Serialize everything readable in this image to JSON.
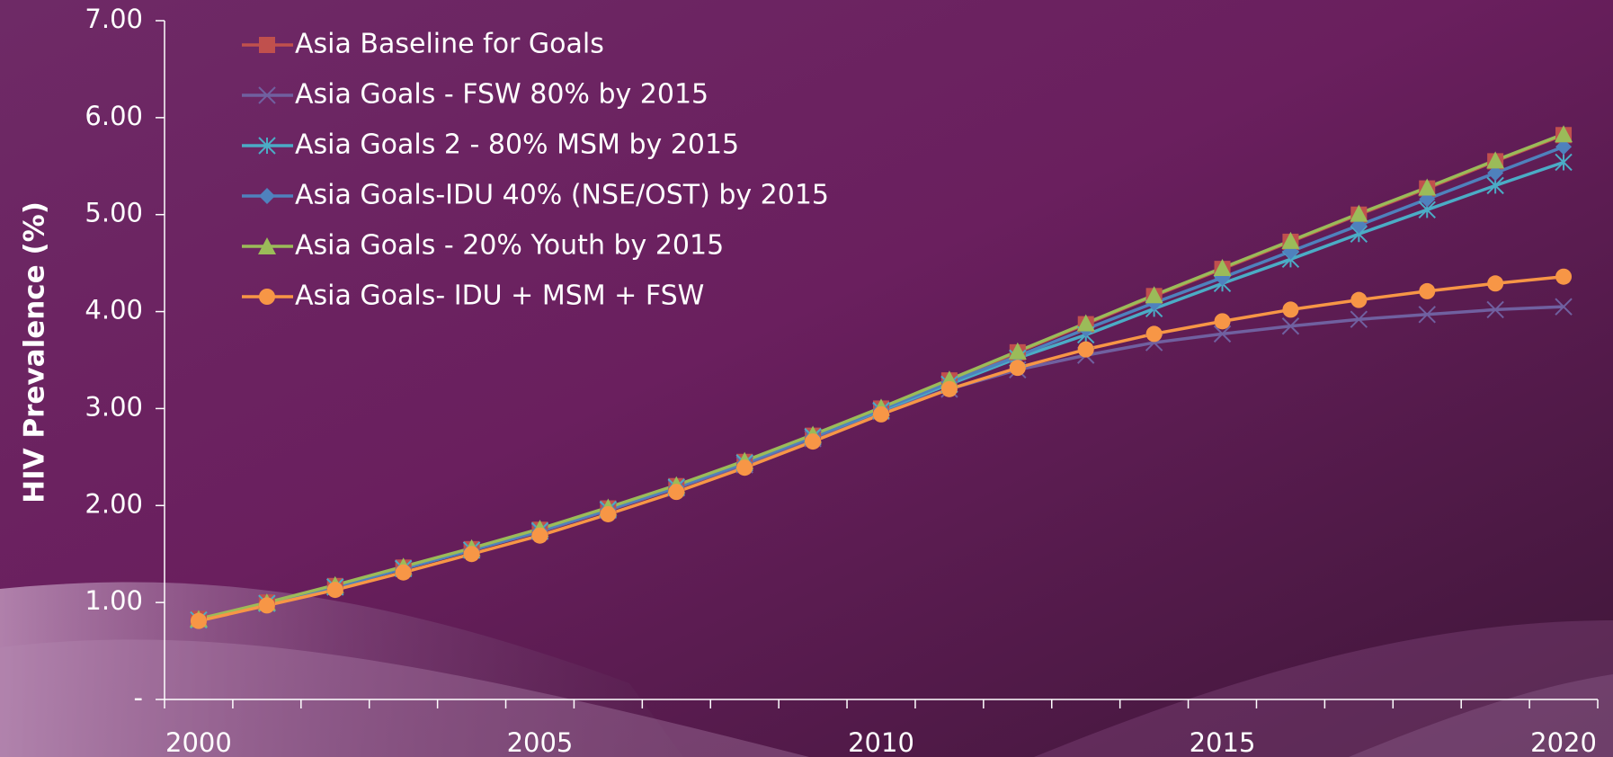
{
  "chart_data": {
    "type": "line",
    "y_label": "HIV Prevalence (%)",
    "categories": [
      "2000",
      null,
      null,
      null,
      null,
      "2005",
      null,
      null,
      null,
      null,
      "2010",
      null,
      null,
      null,
      null,
      "2015",
      null,
      null,
      null,
      null,
      "2020"
    ],
    "ylim": [
      0,
      7
    ],
    "yticks": [
      {
        "value": 0,
        "label": "-"
      },
      {
        "value": 1,
        "label": "1.00"
      },
      {
        "value": 2,
        "label": "2.00"
      },
      {
        "value": 3,
        "label": "3.00"
      },
      {
        "value": 4,
        "label": "4.00"
      },
      {
        "value": 5,
        "label": "5.00"
      },
      {
        "value": 6,
        "label": "6.00"
      },
      {
        "value": 7,
        "label": "7.00"
      }
    ],
    "legend": "upper left",
    "series": [
      {
        "name": "Asia Baseline for Goals",
        "color": "#c0504d",
        "marker": "square",
        "values": [
          0.83,
          1.0,
          1.17,
          1.36,
          1.55,
          1.75,
          1.97,
          2.2,
          2.45,
          2.72,
          3.0,
          3.29,
          3.58,
          3.87,
          4.16,
          4.44,
          4.72,
          5.0,
          5.27,
          5.55,
          5.82
        ]
      },
      {
        "name": "Asia Goals - FSW 80% by 2015",
        "color": "#7060a0",
        "marker": "x",
        "values": [
          0.82,
          0.99,
          1.16,
          1.35,
          1.54,
          1.73,
          1.95,
          2.18,
          2.42,
          2.69,
          2.97,
          3.2,
          3.4,
          3.55,
          3.68,
          3.77,
          3.85,
          3.92,
          3.97,
          4.02,
          4.05
        ]
      },
      {
        "name": "Asia Goals 2 - 80% MSM by 2015",
        "color": "#4bacc6",
        "marker": "asterisk",
        "values": [
          0.82,
          0.99,
          1.16,
          1.35,
          1.54,
          1.74,
          1.96,
          2.19,
          2.44,
          2.71,
          2.98,
          3.25,
          3.52,
          3.76,
          4.03,
          4.29,
          4.54,
          4.8,
          5.05,
          5.3,
          5.54
        ]
      },
      {
        "name": "Asia Goals-IDU 40% (NSE/OST) by 2015",
        "color": "#4f81bd",
        "marker": "diamond",
        "values": [
          0.82,
          0.99,
          1.16,
          1.35,
          1.54,
          1.74,
          1.96,
          2.19,
          2.44,
          2.71,
          2.99,
          3.27,
          3.54,
          3.82,
          4.09,
          4.35,
          4.62,
          4.89,
          5.16,
          5.43,
          5.7
        ]
      },
      {
        "name": "Asia Goals - 20% Youth by 2015",
        "color": "#9bbb59",
        "marker": "triangle",
        "values": [
          0.83,
          1.0,
          1.18,
          1.37,
          1.56,
          1.76,
          1.98,
          2.21,
          2.46,
          2.73,
          3.01,
          3.3,
          3.59,
          3.88,
          4.17,
          4.45,
          4.73,
          5.01,
          5.28,
          5.56,
          5.83
        ]
      },
      {
        "name": "Asia Goals- IDU + MSM + FSW",
        "color": "#f79646",
        "marker": "circle",
        "values": [
          0.81,
          0.97,
          1.13,
          1.31,
          1.5,
          1.69,
          1.91,
          2.14,
          2.39,
          2.66,
          2.94,
          3.2,
          3.42,
          3.61,
          3.77,
          3.9,
          4.02,
          4.12,
          4.21,
          4.29,
          4.36
        ]
      }
    ]
  }
}
